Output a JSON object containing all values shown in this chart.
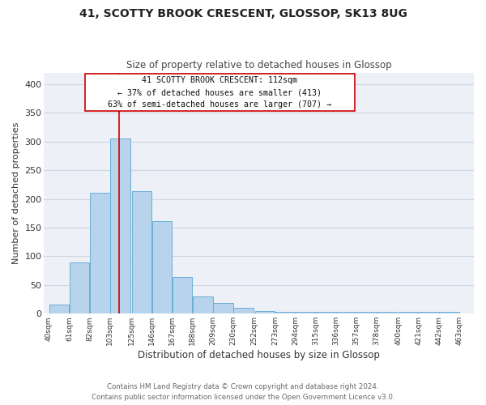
{
  "title": "41, SCOTTY BROOK CRESCENT, GLOSSOP, SK13 8UG",
  "subtitle": "Size of property relative to detached houses in Glossop",
  "xlabel": "Distribution of detached houses by size in Glossop",
  "ylabel": "Number of detached properties",
  "bar_color": "#b8d4ed",
  "bar_edge_color": "#6baed6",
  "bar_left_edges": [
    40,
    61,
    82,
    103,
    125,
    146,
    167,
    188,
    209,
    230,
    252,
    273,
    294,
    315,
    336,
    357,
    378,
    400,
    421,
    442
  ],
  "bar_widths": [
    21,
    21,
    21,
    21,
    21,
    21,
    21,
    21,
    21,
    21,
    21,
    21,
    21,
    21,
    21,
    21,
    21,
    21,
    21,
    21
  ],
  "bar_heights": [
    16,
    89,
    211,
    305,
    214,
    161,
    64,
    30,
    19,
    10,
    5,
    3,
    3,
    3,
    3,
    3,
    3,
    3,
    3,
    3
  ],
  "x_tick_labels": [
    "40sqm",
    "61sqm",
    "82sqm",
    "103sqm",
    "125sqm",
    "146sqm",
    "167sqm",
    "188sqm",
    "209sqm",
    "230sqm",
    "252sqm",
    "273sqm",
    "294sqm",
    "315sqm",
    "336sqm",
    "357sqm",
    "378sqm",
    "400sqm",
    "421sqm",
    "442sqm",
    "463sqm"
  ],
  "x_tick_positions": [
    40,
    61,
    82,
    103,
    125,
    146,
    167,
    188,
    209,
    230,
    252,
    273,
    294,
    315,
    336,
    357,
    378,
    400,
    421,
    442,
    463
  ],
  "ylim": [
    0,
    420
  ],
  "xlim": [
    35,
    478
  ],
  "property_line_x": 112,
  "property_line_color": "#cc0000",
  "annotation_title": "41 SCOTTY BROOK CRESCENT: 112sqm",
  "annotation_line1": "← 37% of detached houses are smaller (413)",
  "annotation_line2": "63% of semi-detached houses are larger (707) →",
  "grid_color": "#cdd5e0",
  "background_color": "#edf1f7",
  "footer_line1": "Contains HM Land Registry data © Crown copyright and database right 2024.",
  "footer_line2": "Contains public sector information licensed under the Open Government Licence v3.0."
}
